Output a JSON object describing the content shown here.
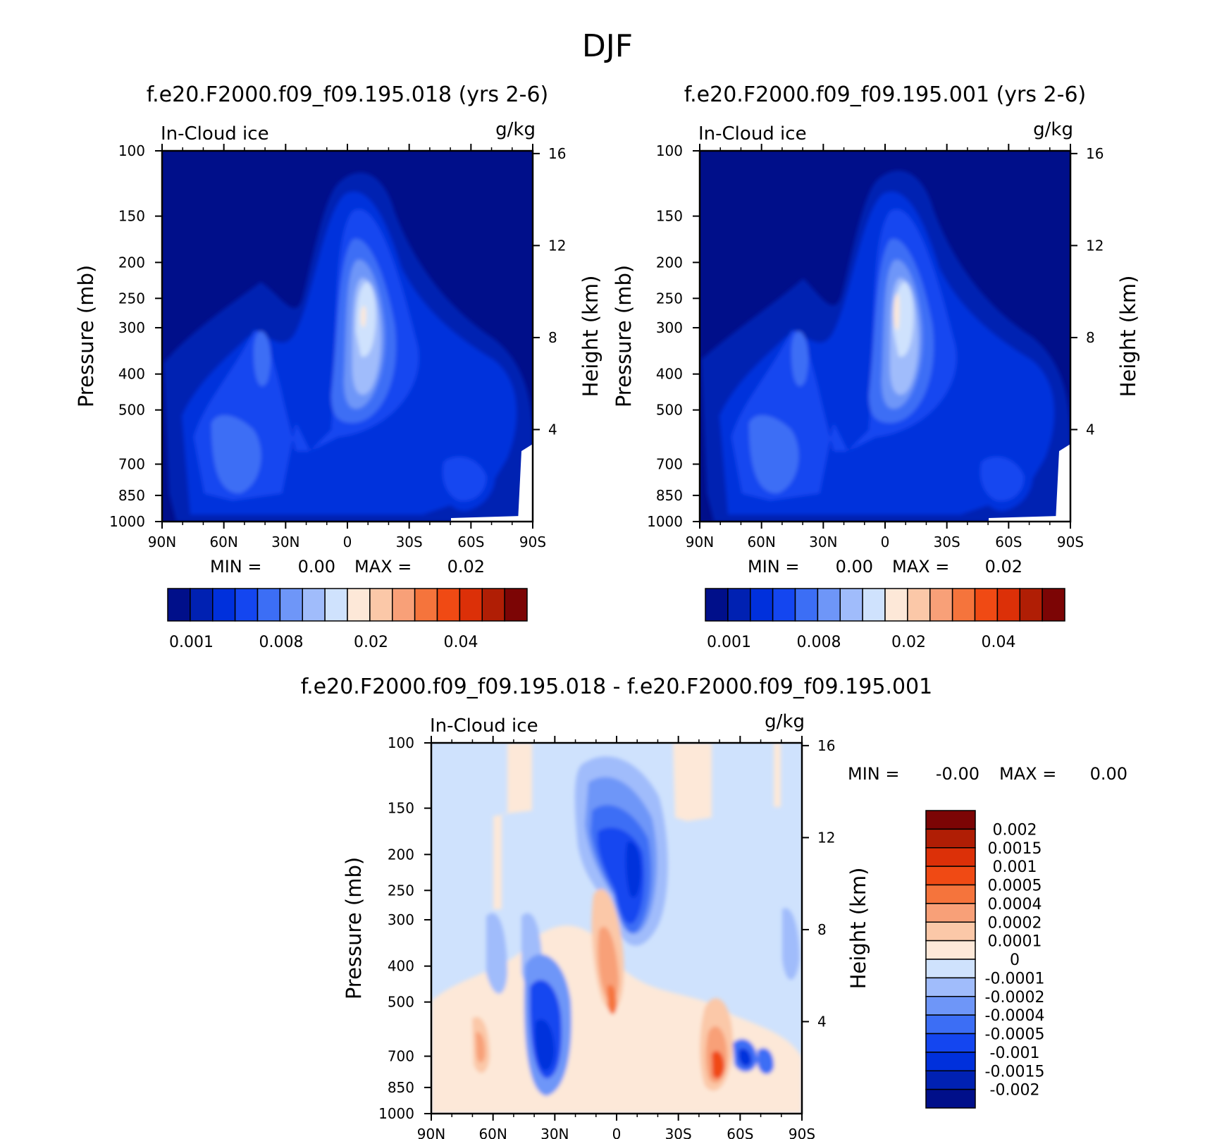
{
  "figure": {
    "title": "DJF"
  },
  "palettes": {
    "abs": [
      "#000f8a",
      "#0021b2",
      "#0030dc",
      "#1446f0",
      "#3c6ef5",
      "#6e96f8",
      "#a0bcfb",
      "#cfe2fd",
      "#fde8d8",
      "#fbc8a8",
      "#f8a078",
      "#f5743c",
      "#f04a14",
      "#dc3008",
      "#b01e05",
      "#7c0505"
    ],
    "diff": [
      "#7c0505",
      "#b01e05",
      "#dc3008",
      "#f04a14",
      "#f5743c",
      "#f8a078",
      "#fbc8a8",
      "#fde8d8",
      "#cfe2fd",
      "#a0bcfb",
      "#6e96f8",
      "#3c6ef5",
      "#1446f0",
      "#0030dc",
      "#0021b2",
      "#000f8a"
    ]
  },
  "chart_data": [
    {
      "type": "heatmap",
      "title": "f.e20.F2000.f09_f09.195.018 (yrs 2-6)",
      "left_label": "In-Cloud ice",
      "right_label": "g/kg",
      "ylabel": "Pressure (mb)",
      "ylabel2": "Height (km)",
      "x_ticks": [
        "90N",
        "60N",
        "30N",
        "0",
        "30S",
        "60S",
        "90S"
      ],
      "y_ticks": [
        "100",
        "150",
        "200",
        "250",
        "300",
        "400",
        "500",
        "700",
        "850",
        "1000"
      ],
      "y2_ticks": [
        "16",
        "12",
        "8",
        "4"
      ],
      "min_label": "MIN =",
      "min_value": "0.00",
      "max_label": "MAX =",
      "max_value": "0.02",
      "colorbar_labels": [
        "0.001",
        "0.008",
        "0.02",
        "0.04"
      ]
    },
    {
      "type": "heatmap",
      "title": "f.e20.F2000.f09_f09.195.001 (yrs 2-6)",
      "left_label": "In-Cloud ice",
      "right_label": "g/kg",
      "ylabel": "Pressure (mb)",
      "ylabel2": "Height (km)",
      "x_ticks": [
        "90N",
        "60N",
        "30N",
        "0",
        "30S",
        "60S",
        "90S"
      ],
      "y_ticks": [
        "100",
        "150",
        "200",
        "250",
        "300",
        "400",
        "500",
        "700",
        "850",
        "1000"
      ],
      "y2_ticks": [
        "16",
        "12",
        "8",
        "4"
      ],
      "min_label": "MIN =",
      "min_value": "0.00",
      "max_label": "MAX =",
      "max_value": "0.02",
      "colorbar_labels": [
        "0.001",
        "0.008",
        "0.02",
        "0.04"
      ]
    },
    {
      "type": "heatmap",
      "title": "f.e20.F2000.f09_f09.195.018 - f.e20.F2000.f09_f09.195.001",
      "left_label": "In-Cloud ice",
      "right_label": "g/kg",
      "ylabel": "Pressure (mb)",
      "ylabel2": "Height (km)",
      "x_ticks": [
        "90N",
        "60N",
        "30N",
        "0",
        "30S",
        "60S",
        "90S"
      ],
      "y_ticks": [
        "100",
        "150",
        "200",
        "250",
        "300",
        "400",
        "500",
        "700",
        "850",
        "1000"
      ],
      "y2_ticks": [
        "16",
        "12",
        "8",
        "4"
      ],
      "min_label": "MIN =",
      "min_value": "-0.00",
      "max_label": "MAX =",
      "max_value": "0.00",
      "colorbar_labels": [
        "0.002",
        "0.0015",
        "0.001",
        "0.0005",
        "0.0004",
        "0.0002",
        "0.0001",
        "0",
        "-0.0001",
        "-0.0002",
        "-0.0004",
        "-0.0005",
        "-0.001",
        "-0.0015",
        "-0.002"
      ]
    }
  ]
}
